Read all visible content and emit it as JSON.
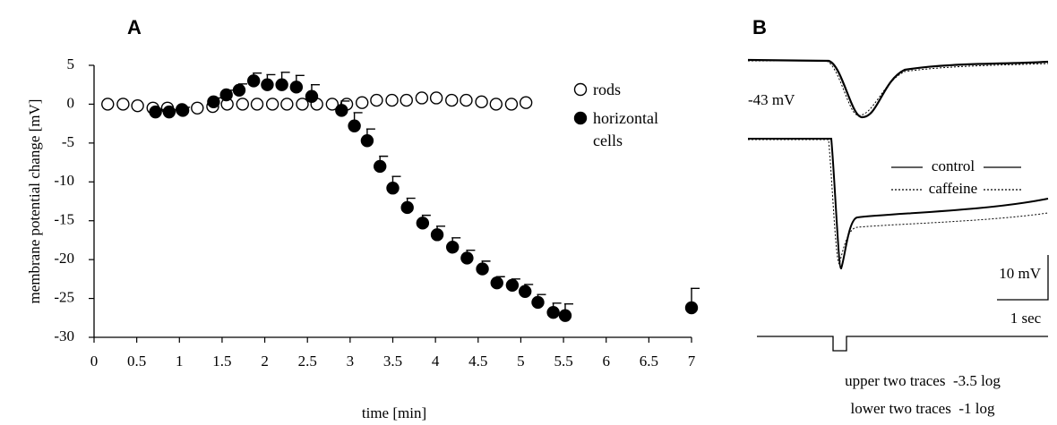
{
  "chart_data": {
    "type": "scatter",
    "title": "A",
    "x_label": "time [min]",
    "y_label": "membrane potential change [mV]",
    "xlim": [
      0,
      7
    ],
    "ylim": [
      -30,
      5
    ],
    "xticks": [
      0,
      0.5,
      1,
      1.5,
      2,
      2.5,
      3,
      3.5,
      4,
      4.5,
      5,
      5.5,
      6,
      6.5,
      7
    ],
    "yticks": [
      5,
      0,
      -5,
      -10,
      -15,
      -20,
      -25,
      -30
    ],
    "legend": "upper right",
    "series": [
      {
        "name": "rods",
        "color": "#000000",
        "marker": "open",
        "x": [
          0.16,
          0.34,
          0.51,
          0.69,
          0.86,
          1.04,
          1.21,
          1.39,
          1.56,
          1.74,
          1.91,
          2.09,
          2.26,
          2.44,
          2.61,
          2.79,
          2.96,
          3.14,
          3.31,
          3.49,
          3.66,
          3.84,
          4.01,
          4.19,
          4.36,
          4.54,
          4.71,
          4.89,
          5.06
        ],
        "values": [
          0,
          0,
          -0.2,
          -0.5,
          -0.5,
          -0.8,
          -0.5,
          -0.3,
          0,
          0,
          0,
          0,
          0,
          0,
          0,
          0,
          0,
          0.2,
          0.5,
          0.5,
          0.5,
          0.8,
          0.8,
          0.5,
          0.5,
          0.3,
          0,
          0,
          0.2
        ]
      },
      {
        "name": "horizontal cells",
        "color": "#000000",
        "marker": "filled",
        "x": [
          0.72,
          0.88,
          1.03,
          1.4,
          1.55,
          1.7,
          1.87,
          2.03,
          2.2,
          2.37,
          2.55,
          2.9,
          3.05,
          3.2,
          3.35,
          3.5,
          3.67,
          3.85,
          4.02,
          4.2,
          4.37,
          4.55,
          4.72,
          4.9,
          5.05,
          5.2,
          5.38,
          5.52,
          7
        ],
        "values": [
          -1.0,
          -1.0,
          -0.7,
          0.3,
          1.2,
          1.8,
          3.0,
          2.5,
          2.5,
          2.2,
          1.0,
          -0.8,
          -2.8,
          -4.7,
          -8.0,
          -10.8,
          -13.3,
          -15.3,
          -16.8,
          -18.4,
          -19.8,
          -21.2,
          -23.0,
          -23.3,
          -24.1,
          -25.5,
          -26.8,
          -27.2,
          -26.2
        ],
        "errors": [
          0.3,
          0.3,
          0.3,
          0.5,
          0.6,
          0.8,
          1.0,
          1.3,
          1.6,
          1.5,
          1.5,
          1.2,
          1.7,
          1.5,
          1.3,
          1.5,
          1.2,
          1.0,
          1.1,
          1.2,
          1.0,
          1.0,
          0.8,
          0.8,
          0.9,
          1.0,
          1.2,
          1.5,
          2.5
        ]
      }
    ]
  },
  "panel_b": {
    "label": "B",
    "resting_potential": "-43 mV",
    "legend": [
      "control",
      "caffeine"
    ],
    "scale_voltage": "10 mV",
    "scale_time": "1 sec",
    "notes": [
      "upper two traces  -3.5 log",
      "lower two traces  -1 log"
    ]
  }
}
